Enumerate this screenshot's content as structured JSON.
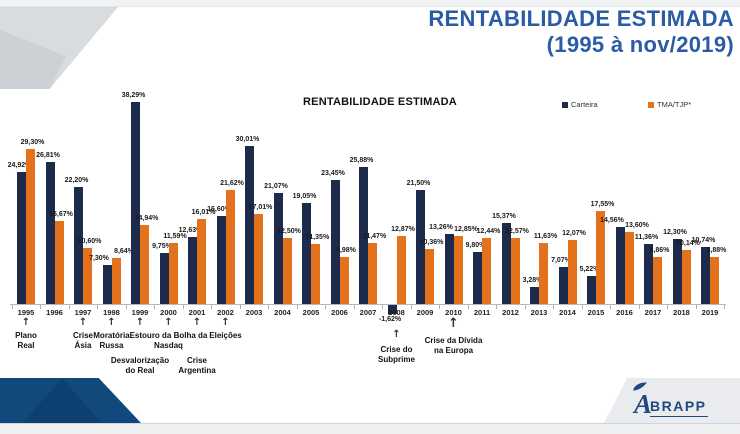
{
  "colors": {
    "accent_blue": "#2b5aa6",
    "navy_bar": "#1c2b4c",
    "orange_bar": "#e4711c",
    "logo_blue": "#1d4b80",
    "deco_navy": "#11497d"
  },
  "header": {
    "title_line1": "RENTABILIDADE ESTIMADA",
    "title_line2": "(1995 à nov/2019)"
  },
  "chart": {
    "title": "RENTABILIDADE ESTIMADA",
    "legend": [
      {
        "label": "Carteira",
        "color": "#1c2b4c"
      },
      {
        "label": "TMA/TJP*",
        "color": "#e4711c"
      }
    ]
  },
  "chart_data": {
    "type": "bar",
    "title": "RENTABILIDADE ESTIMADA",
    "xlabel": "",
    "ylabel": "",
    "ylim": [
      -5,
      42
    ],
    "grid": false,
    "legend_position": "top-right",
    "value_label_format": "pt-BR percent, two decimals",
    "categories": [
      1995,
      1996,
      1997,
      1998,
      1999,
      2000,
      2001,
      2002,
      2003,
      2004,
      2005,
      2006,
      2007,
      2008,
      2009,
      2010,
      2011,
      2012,
      2013,
      2014,
      2015,
      2016,
      2017,
      2018,
      2019
    ],
    "series": [
      {
        "name": "Carteira",
        "color": "#1c2b4c",
        "values": [
          24.92,
          26.81,
          22.2,
          7.3,
          38.29,
          9.75,
          12.63,
          16.6,
          30.01,
          21.07,
          19.05,
          23.45,
          25.88,
          -1.62,
          21.5,
          13.26,
          9.8,
          15.37,
          3.28,
          7.07,
          5.22,
          14.56,
          11.36,
          12.3,
          10.74
        ]
      },
      {
        "name": "TMA/TJP*",
        "color": "#e4711c",
        "values": [
          29.3,
          15.67,
          10.6,
          8.64,
          14.94,
          11.59,
          16.01,
          21.62,
          17.01,
          12.5,
          11.35,
          8.98,
          11.47,
          12.87,
          10.36,
          12.85,
          12.44,
          12.57,
          11.63,
          12.07,
          17.55,
          13.6,
          8.86,
          10.14,
          8.88
        ]
      }
    ],
    "annotations": [
      {
        "year": 1995,
        "lines": [
          "Plano",
          "Real"
        ],
        "row": "a"
      },
      {
        "year": 1997,
        "lines": [
          "Crise",
          "Ásia"
        ],
        "row": "a"
      },
      {
        "year": 1998,
        "lines": [
          "Moratória",
          "Russa"
        ],
        "row": "a"
      },
      {
        "year": 1999,
        "lines": [
          "Desvalorização",
          "do Real"
        ],
        "row": "b"
      },
      {
        "year": 2000,
        "lines": [
          "Estouro da Bolha da",
          "Nasdaq"
        ],
        "row": "a"
      },
      {
        "year": 2001,
        "lines": [
          "Crise",
          "Argentina"
        ],
        "row": "b"
      },
      {
        "year": 2002,
        "lines": [
          "Eleições"
        ],
        "row": "a"
      },
      {
        "year": 2008,
        "lines": [
          "Crise do",
          "Subprime"
        ],
        "row": "c"
      },
      {
        "year": 2010,
        "lines": [
          "Crise da Dívida",
          "na  Europa"
        ],
        "row": "d"
      }
    ]
  },
  "footer": {
    "logo_first_letter": "A",
    "logo_rest": "BRAPP"
  }
}
